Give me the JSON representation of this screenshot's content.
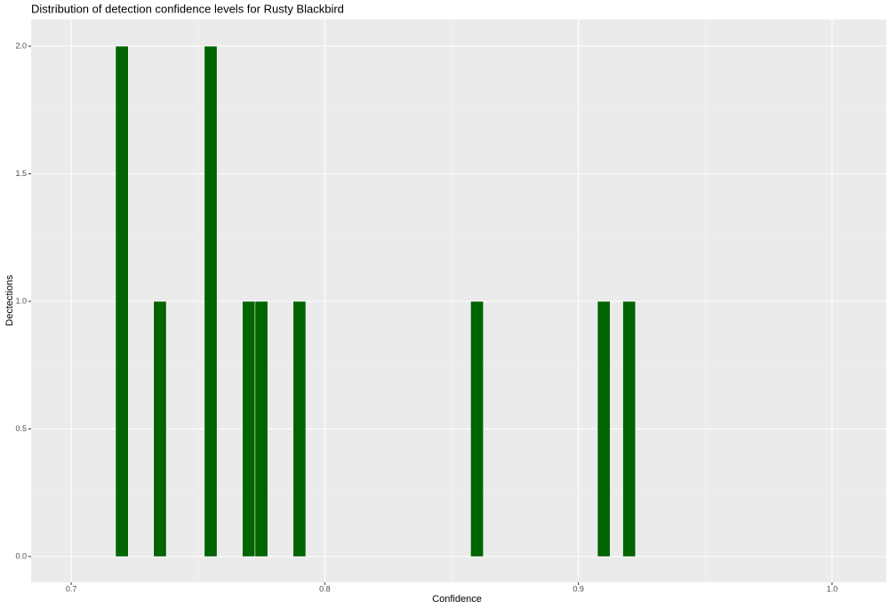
{
  "chart_data": {
    "type": "histogram",
    "title": "Distribution of detection confidence levels for Rusty Blackbird",
    "x_label": "Confidence",
    "y_label": "Dectections",
    "bins": [
      0.7175,
      0.7225,
      0.7275,
      0.7325,
      0.7375,
      0.7425,
      0.7475,
      0.7525,
      0.7575,
      0.7625,
      0.7675,
      0.7725,
      0.7775,
      0.7825,
      0.7875,
      0.7925,
      0.7975,
      0.8025,
      0.8075,
      0.8125,
      0.8175,
      0.8225,
      0.8275,
      0.8325,
      0.8375,
      0.8425,
      0.8475,
      0.8525,
      0.8575,
      0.8625,
      0.8675,
      0.8725,
      0.8775,
      0.8825,
      0.8875,
      0.8925,
      0.8975,
      0.9025,
      0.9075,
      0.9125,
      0.9175,
      0.9225
    ],
    "values": [
      2,
      0,
      0,
      1,
      0,
      0,
      0,
      2,
      0,
      0,
      1,
      1,
      0,
      0,
      1,
      0,
      0,
      0,
      0,
      0,
      0,
      0,
      0,
      0,
      0,
      0,
      0,
      0,
      1,
      0,
      0,
      0,
      0,
      0,
      0,
      0,
      0,
      0,
      1,
      0,
      1
    ],
    "color": "#006400",
    "xlim": [
      0.6842,
      1.0214
    ],
    "ylim": [
      -0.101,
      2.1045
    ],
    "xticks": [
      0.7,
      0.8,
      0.9,
      {
        "value": 1,
        "label": "1.0"
      }
    ],
    "yticks": [
      {
        "value": 0,
        "label": "0.0"
      },
      0.5,
      {
        "value": 1,
        "label": "1.0"
      },
      1.5,
      {
        "value": 2,
        "label": "2.0"
      }
    ],
    "x_minor_ticks": [
      0.75,
      0.85,
      0.95
    ],
    "y_minor_ticks": [
      0.25,
      0.75,
      1.25,
      1.75
    ],
    "grid": true
  }
}
